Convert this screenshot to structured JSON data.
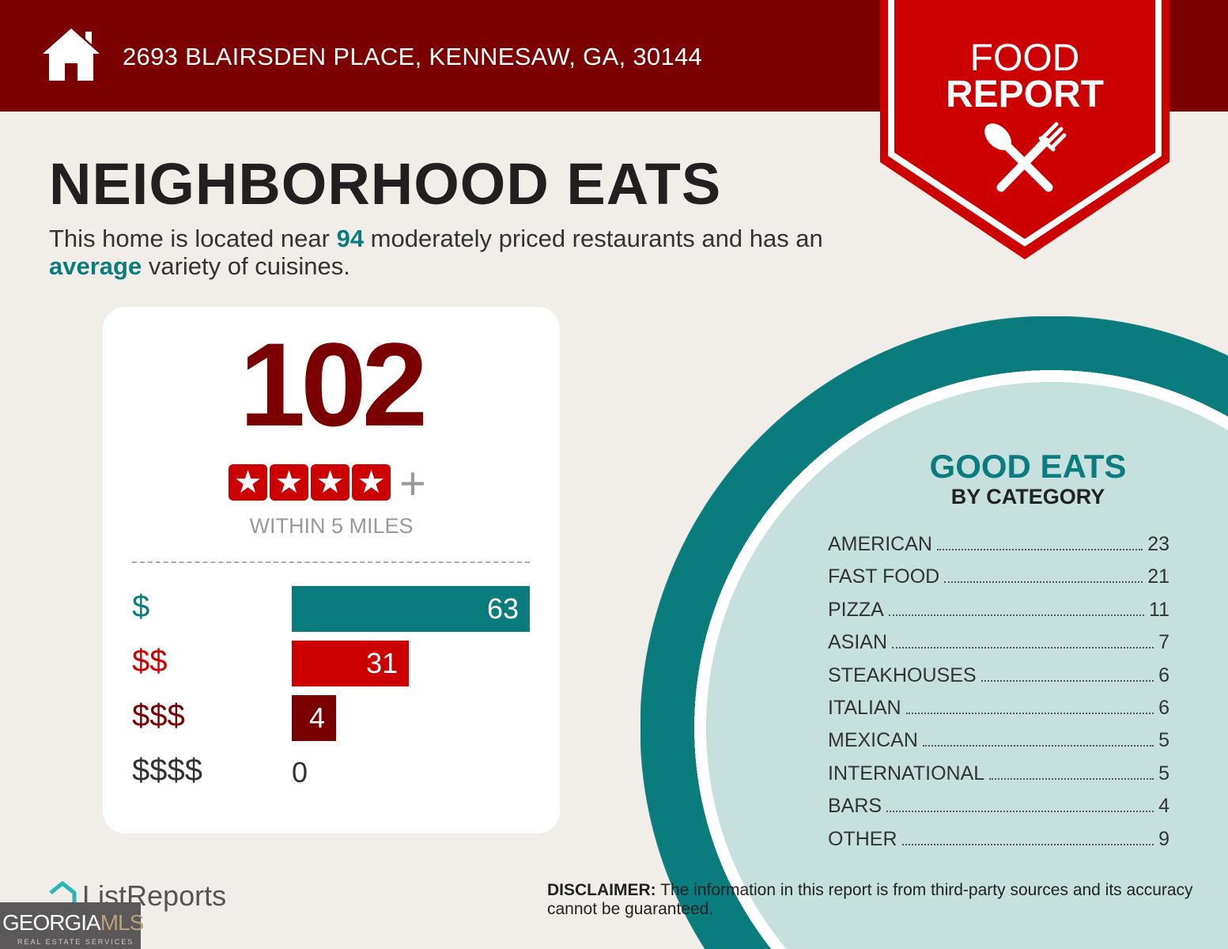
{
  "header": {
    "address": "2693 BLAIRSDEN PLACE, KENNESAW, GA, 30144",
    "badge_line1": "FOOD",
    "badge_line2": "REPORT",
    "colors": {
      "bar": "#7b0000",
      "badge": "#cc0000"
    }
  },
  "main": {
    "title": "NEIGHBORHOOD EATS",
    "summary_pre": "This home is located near ",
    "summary_count": "94",
    "summary_mid": " moderately priced restaurants and has an ",
    "summary_variety": "average",
    "summary_post": " variety of cuisines."
  },
  "card": {
    "total": "102",
    "rating_stars": 4,
    "rating_plus": "+",
    "within": "WITHIN 5 MILES",
    "price_tiers": [
      {
        "label": "$",
        "value": 63,
        "color": "#0a7c7e"
      },
      {
        "label": "$$",
        "value": 31,
        "color": "#cc0000"
      },
      {
        "label": "$$$",
        "value": 4,
        "color": "#7b0000"
      },
      {
        "label": "$$$$",
        "value": 0,
        "color": "#333333"
      }
    ]
  },
  "categories": {
    "title": "GOOD EATS",
    "subtitle": "BY CATEGORY",
    "items": [
      {
        "name": "AMERICAN",
        "count": "23"
      },
      {
        "name": "FAST FOOD",
        "count": "21"
      },
      {
        "name": "PIZZA",
        "count": "11"
      },
      {
        "name": "ASIAN",
        "count": "7"
      },
      {
        "name": "STEAKHOUSES",
        "count": "6"
      },
      {
        "name": "ITALIAN",
        "count": "6"
      },
      {
        "name": "MEXICAN",
        "count": "5"
      },
      {
        "name": "INTERNATIONAL",
        "count": "5"
      },
      {
        "name": "BARS",
        "count": "4"
      },
      {
        "name": "OTHER",
        "count": "9"
      }
    ]
  },
  "footer": {
    "brand": "ListReports",
    "disclaimer_label": "DISCLAIMER:",
    "disclaimer_text": " The information in this report is from third-party sources and its accuracy cannot be guaranteed.",
    "mls_logo": "GEORGIAMLS",
    "mls_tagline": "REAL ESTATE SERVICES"
  }
}
